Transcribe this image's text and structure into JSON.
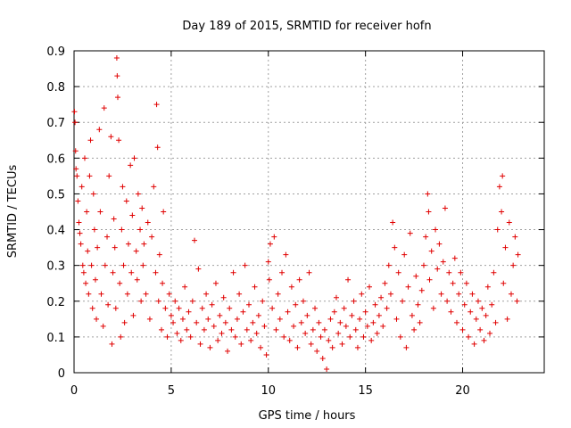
{
  "chart_data": {
    "type": "scatter",
    "title": "Day 189 of 2015, SRMTID for receiver hofn",
    "xlabel": "GPS time / hours",
    "ylabel": "SRMTID / TECUs",
    "xlim": [
      0,
      24.2
    ],
    "ylim": [
      0,
      0.9
    ],
    "xticks": [
      0,
      5,
      10,
      15,
      20
    ],
    "xtick_labels": [
      "0",
      "5",
      "10",
      "15",
      "20"
    ],
    "yticks": [
      0,
      0.1,
      0.2,
      0.3,
      0.4,
      0.5,
      0.6,
      0.7,
      0.8,
      0.9
    ],
    "ytick_labels": [
      "0",
      "0.1",
      "0.2",
      "0.3",
      "0.4",
      "0.5",
      "0.6",
      "0.7",
      "0.8",
      "0.9"
    ],
    "grid": true,
    "marker": "plus",
    "series_color": "#e00000",
    "series": [
      {
        "name": "SRMTID",
        "points": [
          [
            0.02,
            0.73
          ],
          [
            0.05,
            0.7
          ],
          [
            0.08,
            0.62
          ],
          [
            0.1,
            0.57
          ],
          [
            0.15,
            0.55
          ],
          [
            0.2,
            0.48
          ],
          [
            0.25,
            0.42
          ],
          [
            0.3,
            0.39
          ],
          [
            0.35,
            0.36
          ],
          [
            0.4,
            0.52
          ],
          [
            0.45,
            0.3
          ],
          [
            0.5,
            0.28
          ],
          [
            0.55,
            0.6
          ],
          [
            0.6,
            0.25
          ],
          [
            0.65,
            0.45
          ],
          [
            0.7,
            0.34
          ],
          [
            0.75,
            0.22
          ],
          [
            0.8,
            0.55
          ],
          [
            0.85,
            0.65
          ],
          [
            0.9,
            0.3
          ],
          [
            0.95,
            0.18
          ],
          [
            1.0,
            0.5
          ],
          [
            1.05,
            0.4
          ],
          [
            1.1,
            0.26
          ],
          [
            1.15,
            0.15
          ],
          [
            1.2,
            0.35
          ],
          [
            1.3,
            0.68
          ],
          [
            1.35,
            0.45
          ],
          [
            1.4,
            0.22
          ],
          [
            1.5,
            0.13
          ],
          [
            1.55,
            0.74
          ],
          [
            1.6,
            0.3
          ],
          [
            1.7,
            0.38
          ],
          [
            1.75,
            0.19
          ],
          [
            1.8,
            0.55
          ],
          [
            1.9,
            0.66
          ],
          [
            1.95,
            0.08
          ],
          [
            2.0,
            0.28
          ],
          [
            2.05,
            0.43
          ],
          [
            2.1,
            0.35
          ],
          [
            2.15,
            0.18
          ],
          [
            2.2,
            0.88
          ],
          [
            2.22,
            0.83
          ],
          [
            2.25,
            0.77
          ],
          [
            2.3,
            0.65
          ],
          [
            2.35,
            0.25
          ],
          [
            2.4,
            0.1
          ],
          [
            2.45,
            0.4
          ],
          [
            2.5,
            0.52
          ],
          [
            2.55,
            0.3
          ],
          [
            2.6,
            0.14
          ],
          [
            2.7,
            0.48
          ],
          [
            2.75,
            0.22
          ],
          [
            2.8,
            0.36
          ],
          [
            2.9,
            0.58
          ],
          [
            2.95,
            0.28
          ],
          [
            3.0,
            0.44
          ],
          [
            3.05,
            0.16
          ],
          [
            3.1,
            0.6
          ],
          [
            3.2,
            0.34
          ],
          [
            3.25,
            0.26
          ],
          [
            3.3,
            0.5
          ],
          [
            3.4,
            0.4
          ],
          [
            3.45,
            0.2
          ],
          [
            3.5,
            0.46
          ],
          [
            3.55,
            0.3
          ],
          [
            3.6,
            0.36
          ],
          [
            3.7,
            0.22
          ],
          [
            3.8,
            0.42
          ],
          [
            3.9,
            0.15
          ],
          [
            4.0,
            0.38
          ],
          [
            4.1,
            0.52
          ],
          [
            4.2,
            0.28
          ],
          [
            4.25,
            0.75
          ],
          [
            4.3,
            0.63
          ],
          [
            4.35,
            0.2
          ],
          [
            4.4,
            0.33
          ],
          [
            4.5,
            0.12
          ],
          [
            4.55,
            0.25
          ],
          [
            4.6,
            0.45
          ],
          [
            4.7,
            0.18
          ],
          [
            4.8,
            0.1
          ],
          [
            4.9,
            0.22
          ],
          [
            5.0,
            0.16
          ],
          [
            5.1,
            0.14
          ],
          [
            5.2,
            0.2
          ],
          [
            5.3,
            0.11
          ],
          [
            5.4,
            0.18
          ],
          [
            5.5,
            0.09
          ],
          [
            5.6,
            0.15
          ],
          [
            5.7,
            0.24
          ],
          [
            5.8,
            0.12
          ],
          [
            5.9,
            0.17
          ],
          [
            6.0,
            0.1
          ],
          [
            6.1,
            0.2
          ],
          [
            6.2,
            0.37
          ],
          [
            6.3,
            0.14
          ],
          [
            6.4,
            0.29
          ],
          [
            6.5,
            0.08
          ],
          [
            6.6,
            0.18
          ],
          [
            6.7,
            0.12
          ],
          [
            6.8,
            0.22
          ],
          [
            6.9,
            0.15
          ],
          [
            7.0,
            0.07
          ],
          [
            7.1,
            0.19
          ],
          [
            7.2,
            0.13
          ],
          [
            7.3,
            0.25
          ],
          [
            7.4,
            0.09
          ],
          [
            7.5,
            0.16
          ],
          [
            7.6,
            0.11
          ],
          [
            7.7,
            0.21
          ],
          [
            7.8,
            0.14
          ],
          [
            7.9,
            0.06
          ],
          [
            8.0,
            0.18
          ],
          [
            8.1,
            0.12
          ],
          [
            8.2,
            0.28
          ],
          [
            8.3,
            0.1
          ],
          [
            8.4,
            0.15
          ],
          [
            8.5,
            0.22
          ],
          [
            8.6,
            0.08
          ],
          [
            8.7,
            0.17
          ],
          [
            8.8,
            0.3
          ],
          [
            8.9,
            0.12
          ],
          [
            9.0,
            0.19
          ],
          [
            9.1,
            0.09
          ],
          [
            9.2,
            0.14
          ],
          [
            9.3,
            0.24
          ],
          [
            9.4,
            0.11
          ],
          [
            9.5,
            0.16
          ],
          [
            9.6,
            0.07
          ],
          [
            9.7,
            0.2
          ],
          [
            9.8,
            0.13
          ],
          [
            9.9,
            0.05
          ],
          [
            10.0,
            0.31
          ],
          [
            10.05,
            0.26
          ],
          [
            10.1,
            0.36
          ],
          [
            10.2,
            0.18
          ],
          [
            10.3,
            0.38
          ],
          [
            10.4,
            0.12
          ],
          [
            10.5,
            0.22
          ],
          [
            10.6,
            0.15
          ],
          [
            10.7,
            0.28
          ],
          [
            10.8,
            0.1
          ],
          [
            10.9,
            0.33
          ],
          [
            11.0,
            0.17
          ],
          [
            11.1,
            0.09
          ],
          [
            11.2,
            0.24
          ],
          [
            11.3,
            0.13
          ],
          [
            11.4,
            0.19
          ],
          [
            11.5,
            0.07
          ],
          [
            11.6,
            0.26
          ],
          [
            11.7,
            0.14
          ],
          [
            11.8,
            0.2
          ],
          [
            11.9,
            0.11
          ],
          [
            12.0,
            0.16
          ],
          [
            12.1,
            0.28
          ],
          [
            12.2,
            0.08
          ],
          [
            12.3,
            0.12
          ],
          [
            12.4,
            0.18
          ],
          [
            12.5,
            0.06
          ],
          [
            12.6,
            0.14
          ],
          [
            12.7,
            0.1
          ],
          [
            12.8,
            0.04
          ],
          [
            12.9,
            0.12
          ],
          [
            13.0,
            0.01
          ],
          [
            13.1,
            0.09
          ],
          [
            13.2,
            0.15
          ],
          [
            13.3,
            0.07
          ],
          [
            13.4,
            0.17
          ],
          [
            13.5,
            0.21
          ],
          [
            13.6,
            0.11
          ],
          [
            13.7,
            0.14
          ],
          [
            13.8,
            0.08
          ],
          [
            13.9,
            0.18
          ],
          [
            14.0,
            0.13
          ],
          [
            14.1,
            0.26
          ],
          [
            14.2,
            0.1
          ],
          [
            14.3,
            0.16
          ],
          [
            14.4,
            0.2
          ],
          [
            14.5,
            0.12
          ],
          [
            14.6,
            0.07
          ],
          [
            14.7,
            0.15
          ],
          [
            14.8,
            0.22
          ],
          [
            14.9,
            0.1
          ],
          [
            15.0,
            0.17
          ],
          [
            15.1,
            0.13
          ],
          [
            15.2,
            0.24
          ],
          [
            15.3,
            0.09
          ],
          [
            15.4,
            0.14
          ],
          [
            15.5,
            0.19
          ],
          [
            15.6,
            0.11
          ],
          [
            15.7,
            0.16
          ],
          [
            15.8,
            0.21
          ],
          [
            15.9,
            0.13
          ],
          [
            16.0,
            0.25
          ],
          [
            16.1,
            0.18
          ],
          [
            16.2,
            0.3
          ],
          [
            16.3,
            0.22
          ],
          [
            16.4,
            0.42
          ],
          [
            16.5,
            0.35
          ],
          [
            16.6,
            0.15
          ],
          [
            16.7,
            0.28
          ],
          [
            16.8,
            0.1
          ],
          [
            16.9,
            0.2
          ],
          [
            17.0,
            0.33
          ],
          [
            17.1,
            0.07
          ],
          [
            17.2,
            0.24
          ],
          [
            17.3,
            0.39
          ],
          [
            17.4,
            0.16
          ],
          [
            17.5,
            0.12
          ],
          [
            17.6,
            0.27
          ],
          [
            17.7,
            0.19
          ],
          [
            17.8,
            0.14
          ],
          [
            17.9,
            0.23
          ],
          [
            18.0,
            0.3
          ],
          [
            18.1,
            0.38
          ],
          [
            18.2,
            0.5
          ],
          [
            18.25,
            0.45
          ],
          [
            18.3,
            0.26
          ],
          [
            18.4,
            0.34
          ],
          [
            18.5,
            0.18
          ],
          [
            18.6,
            0.4
          ],
          [
            18.7,
            0.29
          ],
          [
            18.8,
            0.36
          ],
          [
            18.9,
            0.22
          ],
          [
            19.0,
            0.31
          ],
          [
            19.1,
            0.46
          ],
          [
            19.2,
            0.2
          ],
          [
            19.3,
            0.28
          ],
          [
            19.4,
            0.17
          ],
          [
            19.5,
            0.25
          ],
          [
            19.6,
            0.32
          ],
          [
            19.7,
            0.14
          ],
          [
            19.8,
            0.22
          ],
          [
            19.9,
            0.28
          ],
          [
            20.0,
            0.12
          ],
          [
            20.1,
            0.19
          ],
          [
            20.2,
            0.25
          ],
          [
            20.3,
            0.1
          ],
          [
            20.4,
            0.17
          ],
          [
            20.5,
            0.22
          ],
          [
            20.6,
            0.08
          ],
          [
            20.7,
            0.15
          ],
          [
            20.8,
            0.2
          ],
          [
            20.9,
            0.12
          ],
          [
            21.0,
            0.18
          ],
          [
            21.1,
            0.09
          ],
          [
            21.2,
            0.16
          ],
          [
            21.3,
            0.24
          ],
          [
            21.4,
            0.11
          ],
          [
            21.5,
            0.19
          ],
          [
            21.6,
            0.28
          ],
          [
            21.7,
            0.14
          ],
          [
            21.8,
            0.4
          ],
          [
            21.9,
            0.52
          ],
          [
            22.0,
            0.45
          ],
          [
            22.05,
            0.55
          ],
          [
            22.1,
            0.25
          ],
          [
            22.2,
            0.35
          ],
          [
            22.3,
            0.15
          ],
          [
            22.4,
            0.42
          ],
          [
            22.5,
            0.22
          ],
          [
            22.6,
            0.3
          ],
          [
            22.7,
            0.38
          ],
          [
            22.8,
            0.2
          ],
          [
            22.85,
            0.33
          ]
        ]
      }
    ]
  }
}
